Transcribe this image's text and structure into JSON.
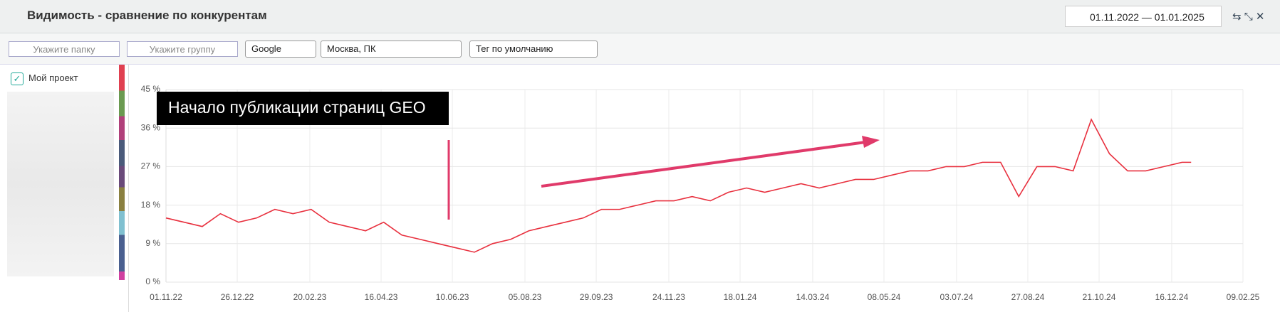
{
  "header": {
    "title": "Видимость - сравнение по конкурентам",
    "date_range": "01.11.2022 — 01.01.2025"
  },
  "filters": {
    "folder": "Укажите папку",
    "group": "Укажите группу",
    "engine": "Google",
    "region": "Москва, ПК",
    "tag": "Тег по умолчанию"
  },
  "sidebar": {
    "project": "Мой проект"
  },
  "chart_data": {
    "type": "line",
    "annotation": "Начало публикации страниц GEO",
    "x": [
      "01.11.22",
      "15.11.22",
      "29.11.22",
      "13.12.22",
      "27.12.22",
      "10.01.23",
      "24.01.23",
      "07.02.23",
      "21.02.23",
      "07.03.23",
      "21.03.23",
      "04.04.23",
      "18.04.23",
      "02.05.23",
      "16.05.23",
      "30.05.23",
      "13.06.23",
      "27.06.23",
      "11.07.23",
      "25.07.23",
      "08.08.23",
      "22.08.23",
      "05.09.23",
      "19.09.23",
      "03.10.23",
      "17.10.23",
      "31.10.23",
      "14.11.23",
      "28.11.23",
      "12.12.23",
      "26.12.23",
      "09.01.24",
      "23.01.24",
      "06.02.24",
      "20.02.24",
      "05.03.24",
      "19.03.24",
      "02.04.24",
      "16.04.24",
      "30.04.24",
      "14.05.24",
      "28.05.24",
      "11.06.24",
      "25.06.24",
      "09.07.24",
      "23.07.24",
      "06.08.24",
      "20.08.24",
      "03.09.24",
      "17.09.24",
      "01.10.24",
      "15.10.24",
      "29.10.24",
      "12.11.24",
      "26.11.24",
      "10.12.24",
      "24.12.24",
      "31.12.24"
    ],
    "series": [
      {
        "name": "Мой проект",
        "color": "#e8303e",
        "values": [
          15,
          14,
          13,
          16,
          14,
          15,
          17,
          16,
          17,
          14,
          13,
          12,
          14,
          11,
          10,
          9,
          8,
          7,
          9,
          10,
          12,
          13,
          14,
          15,
          17,
          17,
          18,
          19,
          19,
          20,
          19,
          21,
          22,
          21,
          22,
          23,
          22,
          23,
          24,
          24,
          25,
          26,
          26,
          27,
          27,
          28,
          28,
          20,
          27,
          27,
          26,
          38,
          30,
          26,
          26,
          27,
          28,
          28
        ]
      }
    ],
    "xlim": [
      "01.11.22",
      "09.02.25"
    ],
    "xticks": [
      "01.11.22",
      "26.12.22",
      "20.02.23",
      "16.04.23",
      "10.06.23",
      "05.08.23",
      "29.09.23",
      "24.11.23",
      "18.01.24",
      "14.03.24",
      "08.05.24",
      "03.07.24",
      "27.08.24",
      "21.10.24",
      "16.12.24",
      "09.02.25"
    ],
    "ylim": [
      0,
      45
    ],
    "yticks": [
      {
        "value": 0,
        "label": "0 %"
      },
      {
        "value": 9,
        "label": "9 %"
      },
      {
        "value": 18,
        "label": "18 %"
      },
      {
        "value": 27,
        "label": "27 %"
      },
      {
        "value": 36,
        "label": "36 %"
      },
      {
        "value": 45,
        "label": "45 %"
      }
    ],
    "grid": true
  }
}
